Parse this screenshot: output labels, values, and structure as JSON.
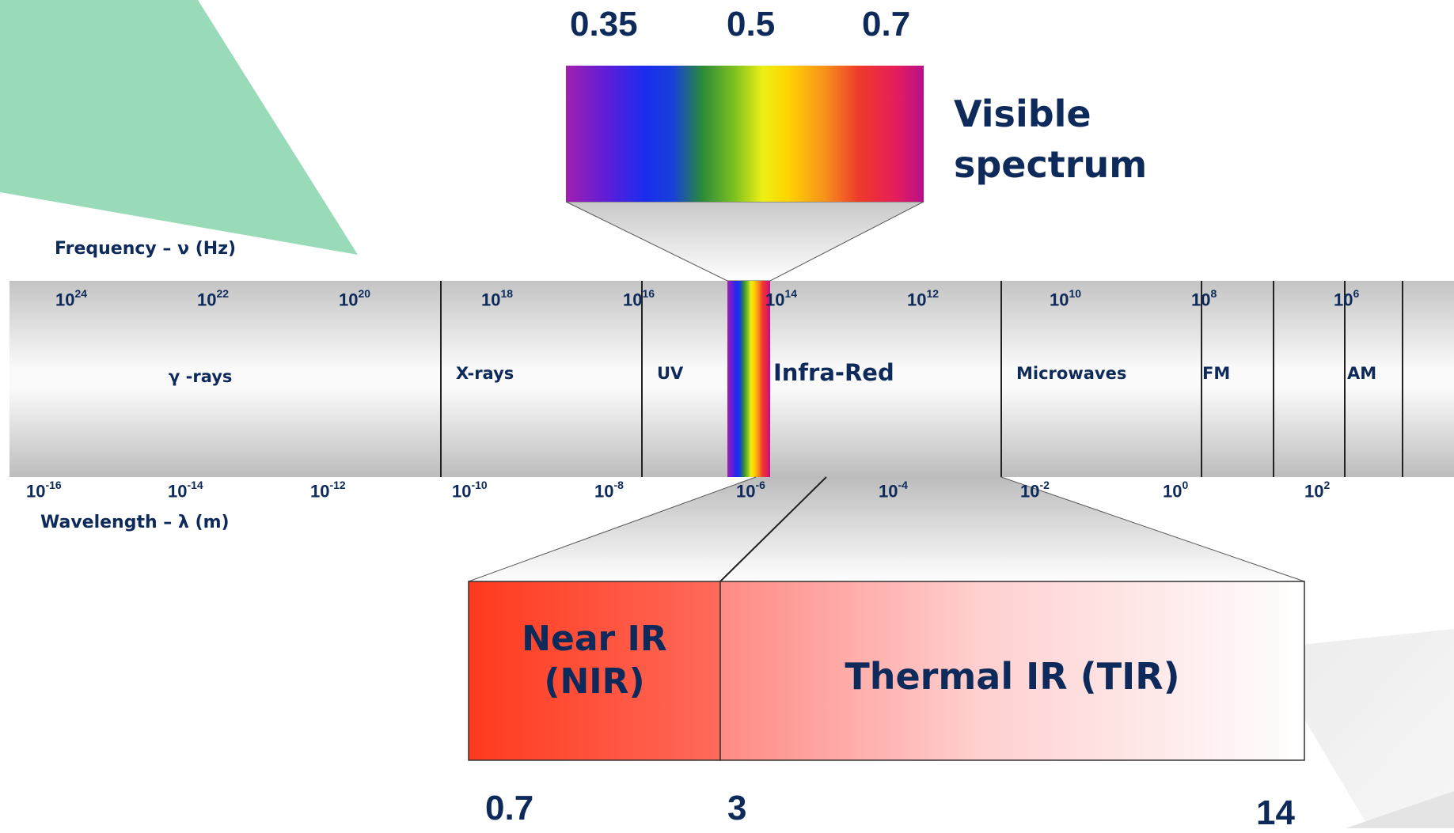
{
  "colors": {
    "text": "#0d2a5a",
    "band_fill": "#c8c8c8",
    "deco_green": "#99dbb8",
    "near_ir": "#ff3a22",
    "thermal_ir_start": "#ff8a84",
    "thermal_ir_end": "#ffffff"
  },
  "visible": {
    "wavelengths": [
      "0.35",
      "0.5",
      "0.7"
    ],
    "title_line1": "Visible",
    "title_line2": "spectrum"
  },
  "frequency_axis": {
    "title": "Frequency – ν (Hz)",
    "ticks": [
      {
        "base": "10",
        "exp": "24"
      },
      {
        "base": "10",
        "exp": "22"
      },
      {
        "base": "10",
        "exp": "20"
      },
      {
        "base": "10",
        "exp": "18"
      },
      {
        "base": "10",
        "exp": "16"
      },
      {
        "base": "10",
        "exp": "14"
      },
      {
        "base": "10",
        "exp": "12"
      },
      {
        "base": "10",
        "exp": "10"
      },
      {
        "base": "10",
        "exp": "8"
      },
      {
        "base": "10",
        "exp": "6"
      }
    ]
  },
  "wavelength_axis": {
    "title": "Wavelength – λ (m)",
    "ticks": [
      {
        "base": "10",
        "exp": "-16"
      },
      {
        "base": "10",
        "exp": "-14"
      },
      {
        "base": "10",
        "exp": "-12"
      },
      {
        "base": "10",
        "exp": "-10"
      },
      {
        "base": "10",
        "exp": "-8"
      },
      {
        "base": "10",
        "exp": "-6"
      },
      {
        "base": "10",
        "exp": "-4"
      },
      {
        "base": "10",
        "exp": "-2"
      },
      {
        "base": "10",
        "exp": "0"
      },
      {
        "base": "10",
        "exp": "2"
      }
    ]
  },
  "bands": {
    "gamma": "γ -rays",
    "xrays": "X-rays",
    "uv": "UV",
    "infrared": "Infra-Red",
    "microwaves": "Microwaves",
    "fm": "FM",
    "am": "AM"
  },
  "infrared_detail": {
    "near_line1": "Near IR",
    "near_line2": "(NIR)",
    "thermal": "Thermal IR (TIR)",
    "wavelengths": [
      "0.7",
      "3",
      "14"
    ]
  }
}
